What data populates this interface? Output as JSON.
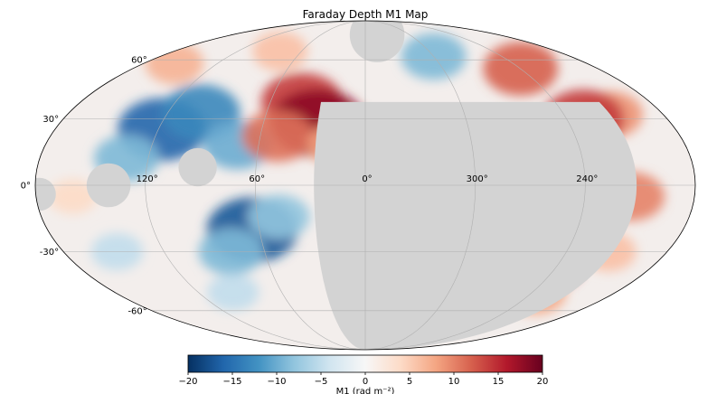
{
  "chart_data": {
    "type": "heatmap",
    "projection": "mollweide",
    "title": "Faraday Depth M1 Map",
    "lon_ticks": [
      "120°",
      "60°",
      "0°",
      "300°",
      "240°"
    ],
    "lat_ticks": [
      "60°",
      "30°",
      "0°",
      "-30°",
      "-60°"
    ],
    "grid": true,
    "masked_color": "#d3d3d3",
    "colormap": "RdBu_r",
    "colorbar": {
      "label": "M1 (rad m⁻²)",
      "vmin": -20,
      "vmax": 20,
      "tick_values": [
        -20,
        -15,
        -10,
        -5,
        0,
        5,
        10,
        15,
        20
      ],
      "tick_labels": [
        "−20",
        "−15",
        "−10",
        "−5",
        "0",
        "5",
        "10",
        "15",
        "20"
      ],
      "stops": [
        "#053061",
        "#2166ac",
        "#4393c3",
        "#92c5de",
        "#d1e5f0",
        "#f7f7f7",
        "#fddbc7",
        "#f4a582",
        "#d6604d",
        "#b2182b",
        "#67001f"
      ]
    },
    "features": [
      {
        "lon": 118,
        "lat": 25,
        "value": -16
      },
      {
        "lon": 100,
        "lat": 33,
        "value": -13
      },
      {
        "lon": 132,
        "lat": 12,
        "value": -9
      },
      {
        "lon": 72,
        "lat": 18,
        "value": -10
      },
      {
        "lon": 64,
        "lat": -20,
        "value": -17
      },
      {
        "lon": 80,
        "lat": -30,
        "value": -9
      },
      {
        "lon": 48,
        "lat": -14,
        "value": -8
      },
      {
        "lon": 148,
        "lat": -30,
        "value": -5
      },
      {
        "lon": 95,
        "lat": -50,
        "value": -5
      },
      {
        "lon": 40,
        "lat": 38,
        "value": 14
      },
      {
        "lon": 28,
        "lat": 28,
        "value": 18
      },
      {
        "lon": 50,
        "lat": 22,
        "value": 11
      },
      {
        "lon": 15,
        "lat": 18,
        "value": 8
      },
      {
        "lon": 155,
        "lat": 58,
        "value": 7
      },
      {
        "lon": 80,
        "lat": 65,
        "value": 6
      },
      {
        "lon": 240,
        "lat": 55,
        "value": 12
      },
      {
        "lon": 212,
        "lat": 32,
        "value": 9
      },
      {
        "lon": 230,
        "lat": 30,
        "value": 14
      },
      {
        "lon": 258,
        "lat": 10,
        "value": 9
      },
      {
        "lon": 250,
        "lat": -5,
        "value": 19
      },
      {
        "lon": 215,
        "lat": -5,
        "value": 10
      },
      {
        "lon": 252,
        "lat": -35,
        "value": 15
      },
      {
        "lon": 238,
        "lat": -50,
        "value": 8
      },
      {
        "lon": 272,
        "lat": -30,
        "value": 9
      },
      {
        "lon": 300,
        "lat": 62,
        "value": -9
      },
      {
        "lon": 215,
        "lat": -30,
        "value": 6
      },
      {
        "lon": 160,
        "lat": -5,
        "value": 4
      }
    ],
    "masked_regions": [
      {
        "lon_center": 300,
        "lat_min": -90,
        "lat_max": 38,
        "lon_half_width_deg": 88
      },
      {
        "lon": 344,
        "lat": 76,
        "radius_deg": 10
      },
      {
        "lon": 92,
        "lat": 8,
        "radius_deg": 7
      },
      {
        "lon": 140,
        "lat": 0,
        "radius_deg": 8
      },
      {
        "lon": 178,
        "lat": -4,
        "radius_deg": 6
      }
    ]
  }
}
